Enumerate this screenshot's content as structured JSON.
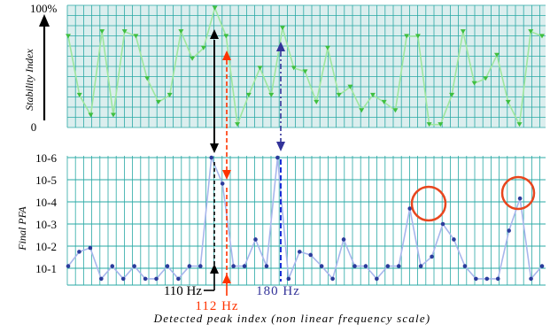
{
  "chart_data": [
    {
      "type": "line",
      "title": "",
      "ylabel": "Stability Index",
      "xlabel": "",
      "ylim": [
        0,
        100
      ],
      "y_tick_labels": [
        {
          "value": 0,
          "label": "0"
        },
        {
          "value": 100,
          "label": "100%"
        }
      ],
      "grid": true,
      "series": [
        {
          "values": [
            76,
            26,
            9,
            80,
            9,
            80,
            76,
            40,
            20,
            26,
            80,
            57,
            66,
            100,
            76,
            1,
            26,
            49,
            26,
            83,
            49,
            46,
            20,
            66,
            26,
            33,
            13,
            26,
            20,
            13,
            76,
            76,
            1,
            1,
            26,
            80,
            36,
            40,
            60,
            20,
            1,
            80,
            76
          ]
        }
      ],
      "colors": {
        "line": "#9ee69e",
        "marker": "#3fbf3f",
        "grid": "#2aa9a5",
        "background": "#dbeeee"
      }
    },
    {
      "type": "line",
      "title": "",
      "ylabel": "Final PFA",
      "xlabel": "Detected peak index (non linear frequency scale)",
      "y_scale": "log",
      "y_tick_labels": [
        "10-6",
        "10-5",
        "10-4",
        "10-3",
        "10-2",
        "10-1"
      ],
      "y_tick_values": [
        1e-06,
        1e-05,
        0.0001,
        0.001,
        0.01,
        0.1
      ],
      "grid": true,
      "series": [
        {
          "values": [
            0.08,
            0.018,
            0.012,
            0.3,
            0.08,
            0.3,
            0.08,
            0.3,
            0.3,
            0.08,
            0.3,
            0.08,
            0.08,
            1e-06,
            1.5e-05,
            0.08,
            0.08,
            0.005,
            0.08,
            1e-06,
            0.3,
            0.018,
            0.025,
            0.08,
            0.3,
            0.005,
            0.08,
            0.08,
            0.3,
            0.08,
            0.08,
            0.0002,
            0.08,
            0.03,
            0.001,
            0.005,
            0.08,
            0.3,
            0.3,
            0.3,
            0.002,
            7e-05,
            0.3,
            0.08
          ]
        }
      ],
      "colors": {
        "line": "#a8b6ec",
        "marker": "#2c3c9c",
        "grid": "#2aa9a5",
        "background": "#ffffff",
        "circle": "#e8461e"
      }
    }
  ],
  "annotations": {
    "label_110": "110 Hz",
    "label_112": "112 Hz",
    "label_180": "180 Hz",
    "color_110": "#000000",
    "color_112": "#ff3300",
    "color_180": "#333399"
  }
}
